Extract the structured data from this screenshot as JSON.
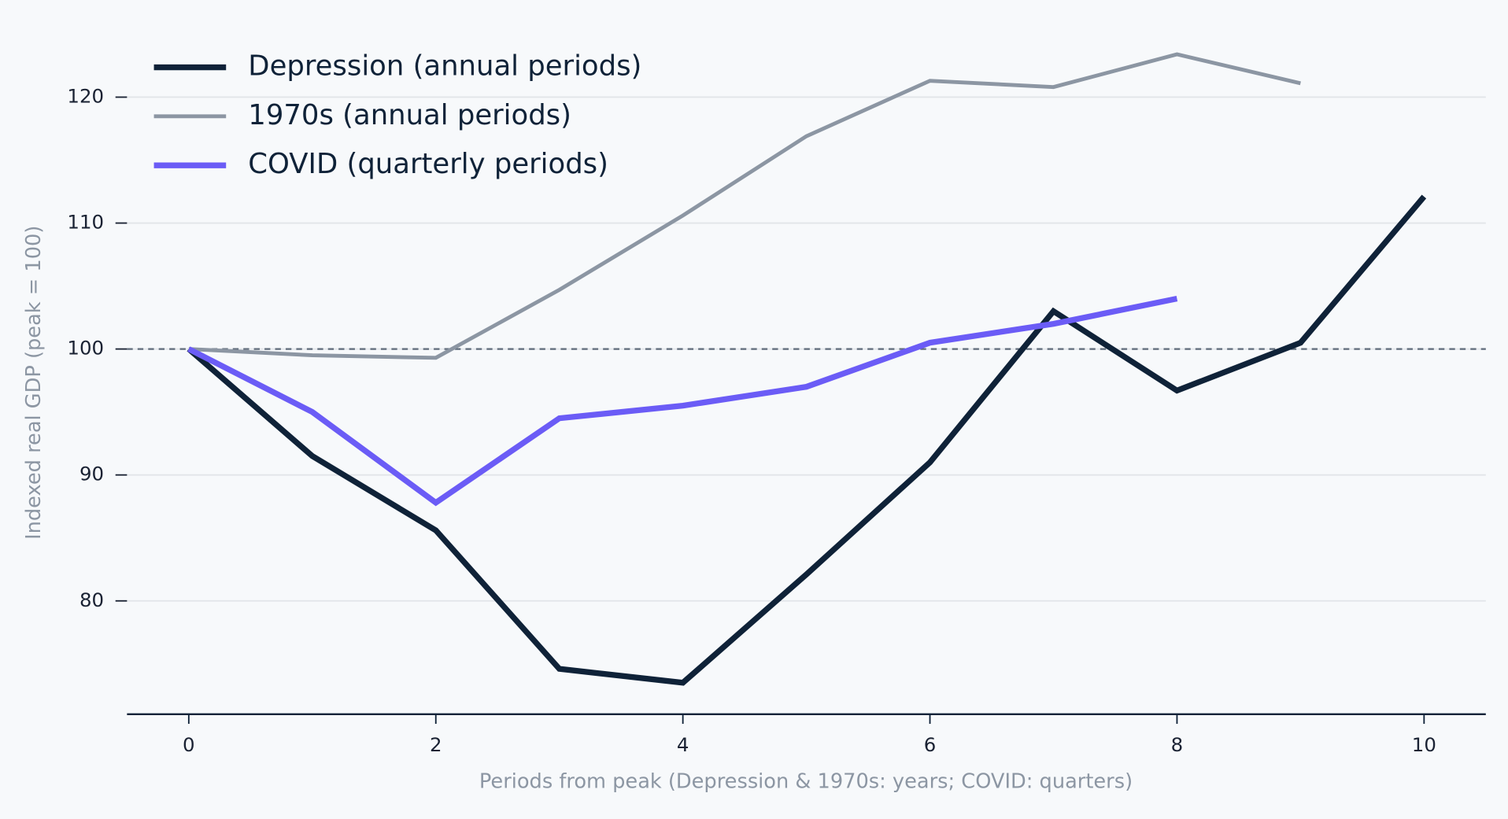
{
  "chart_data": {
    "type": "line",
    "x_label": "Periods from peak (Depression & 1970s: years; COVID: quarters)",
    "y_label": "Indexed real GDP (peak = 100)",
    "x": [
      0,
      1,
      2,
      3,
      4,
      5,
      6,
      7,
      8,
      9,
      10
    ],
    "series": [
      {
        "name": "Depression (annual periods)",
        "color": "#0f2238",
        "width": 6,
        "values": [
          100,
          91.5,
          85.6,
          74.6,
          73.5,
          82.1,
          91.0,
          103.0,
          96.7,
          100.5,
          112.1
        ]
      },
      {
        "name": "1970s (annual periods)",
        "color": "#8c96a3",
        "width": 4,
        "values": [
          100,
          99.5,
          99.3,
          104.7,
          110.6,
          116.9,
          121.3,
          120.8,
          123.4,
          121.1,
          null
        ]
      },
      {
        "name": "COVID (quarterly periods)",
        "color": "#6b5cf6",
        "width": 6,
        "values": [
          100,
          95.0,
          87.8,
          94.5,
          95.5,
          97.0,
          100.5,
          102.0,
          104.0,
          null,
          null
        ]
      }
    ],
    "xlim": [
      -0.5,
      10.5
    ],
    "ylim": [
      71,
      125.5
    ],
    "xticks": [
      0,
      2,
      4,
      6,
      8,
      10
    ],
    "yticks": [
      80,
      90,
      100,
      110,
      120
    ],
    "reference_line": 100,
    "grid": true,
    "legend": "upper-left"
  }
}
